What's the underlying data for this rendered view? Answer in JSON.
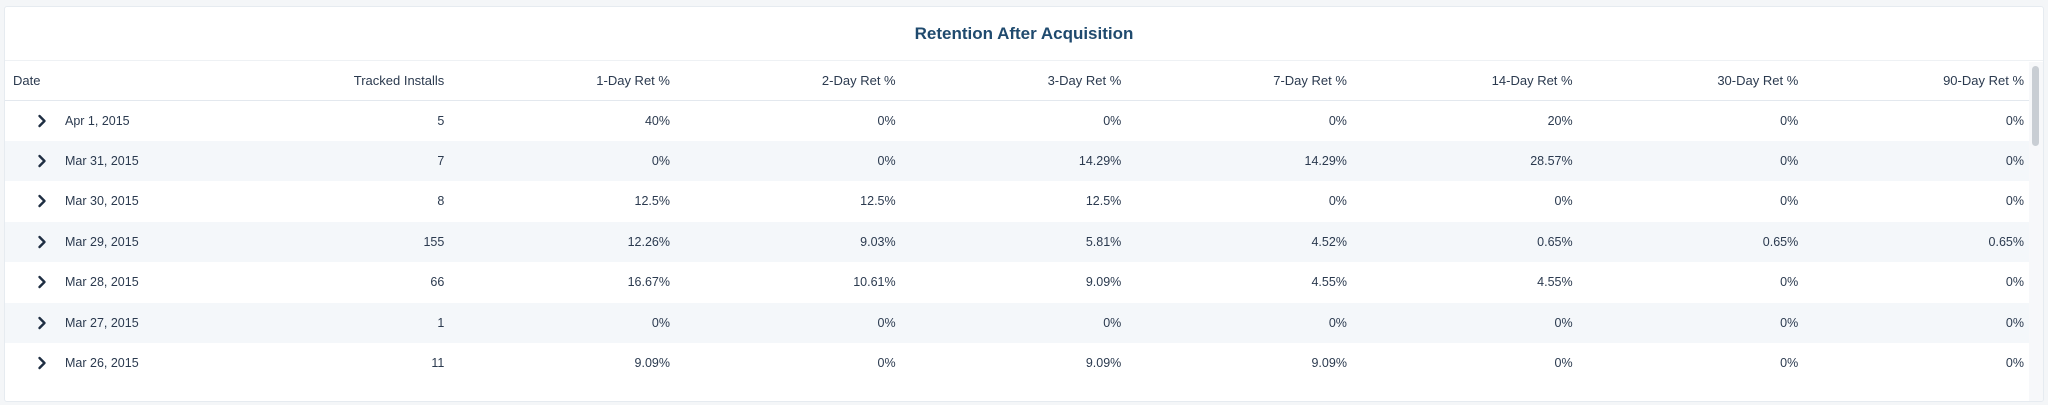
{
  "title": "Retention After Acquisition",
  "columns": {
    "date": "Date",
    "installs": "Tracked Installs",
    "d1": "1-Day Ret %",
    "d2": "2-Day Ret %",
    "d3": "3-Day Ret %",
    "d7": "7-Day Ret %",
    "d14": "14-Day Ret %",
    "d30": "30-Day Ret %",
    "d90": "90-Day Ret %"
  },
  "expand_icon": "chevron-right-icon",
  "colors": {
    "title": "#1f4a6e",
    "stripe": "#f4f7fa",
    "text": "#2b3a4f"
  },
  "rows": [
    {
      "date": "Apr 1, 2015",
      "installs": "5",
      "d1": "40%",
      "d2": "0%",
      "d3": "0%",
      "d7": "0%",
      "d14": "20%",
      "d30": "0%",
      "d90": "0%"
    },
    {
      "date": "Mar 31, 2015",
      "installs": "7",
      "d1": "0%",
      "d2": "0%",
      "d3": "14.29%",
      "d7": "14.29%",
      "d14": "28.57%",
      "d30": "0%",
      "d90": "0%"
    },
    {
      "date": "Mar 30, 2015",
      "installs": "8",
      "d1": "12.5%",
      "d2": "12.5%",
      "d3": "12.5%",
      "d7": "0%",
      "d14": "0%",
      "d30": "0%",
      "d90": "0%"
    },
    {
      "date": "Mar 29, 2015",
      "installs": "155",
      "d1": "12.26%",
      "d2": "9.03%",
      "d3": "5.81%",
      "d7": "4.52%",
      "d14": "0.65%",
      "d30": "0.65%",
      "d90": "0.65%"
    },
    {
      "date": "Mar 28, 2015",
      "installs": "66",
      "d1": "16.67%",
      "d2": "10.61%",
      "d3": "9.09%",
      "d7": "4.55%",
      "d14": "4.55%",
      "d30": "0%",
      "d90": "0%"
    },
    {
      "date": "Mar 27, 2015",
      "installs": "1",
      "d1": "0%",
      "d2": "0%",
      "d3": "0%",
      "d7": "0%",
      "d14": "0%",
      "d30": "0%",
      "d90": "0%"
    },
    {
      "date": "Mar 26, 2015",
      "installs": "11",
      "d1": "9.09%",
      "d2": "0%",
      "d3": "9.09%",
      "d7": "9.09%",
      "d14": "0%",
      "d30": "0%",
      "d90": "0%"
    }
  ]
}
